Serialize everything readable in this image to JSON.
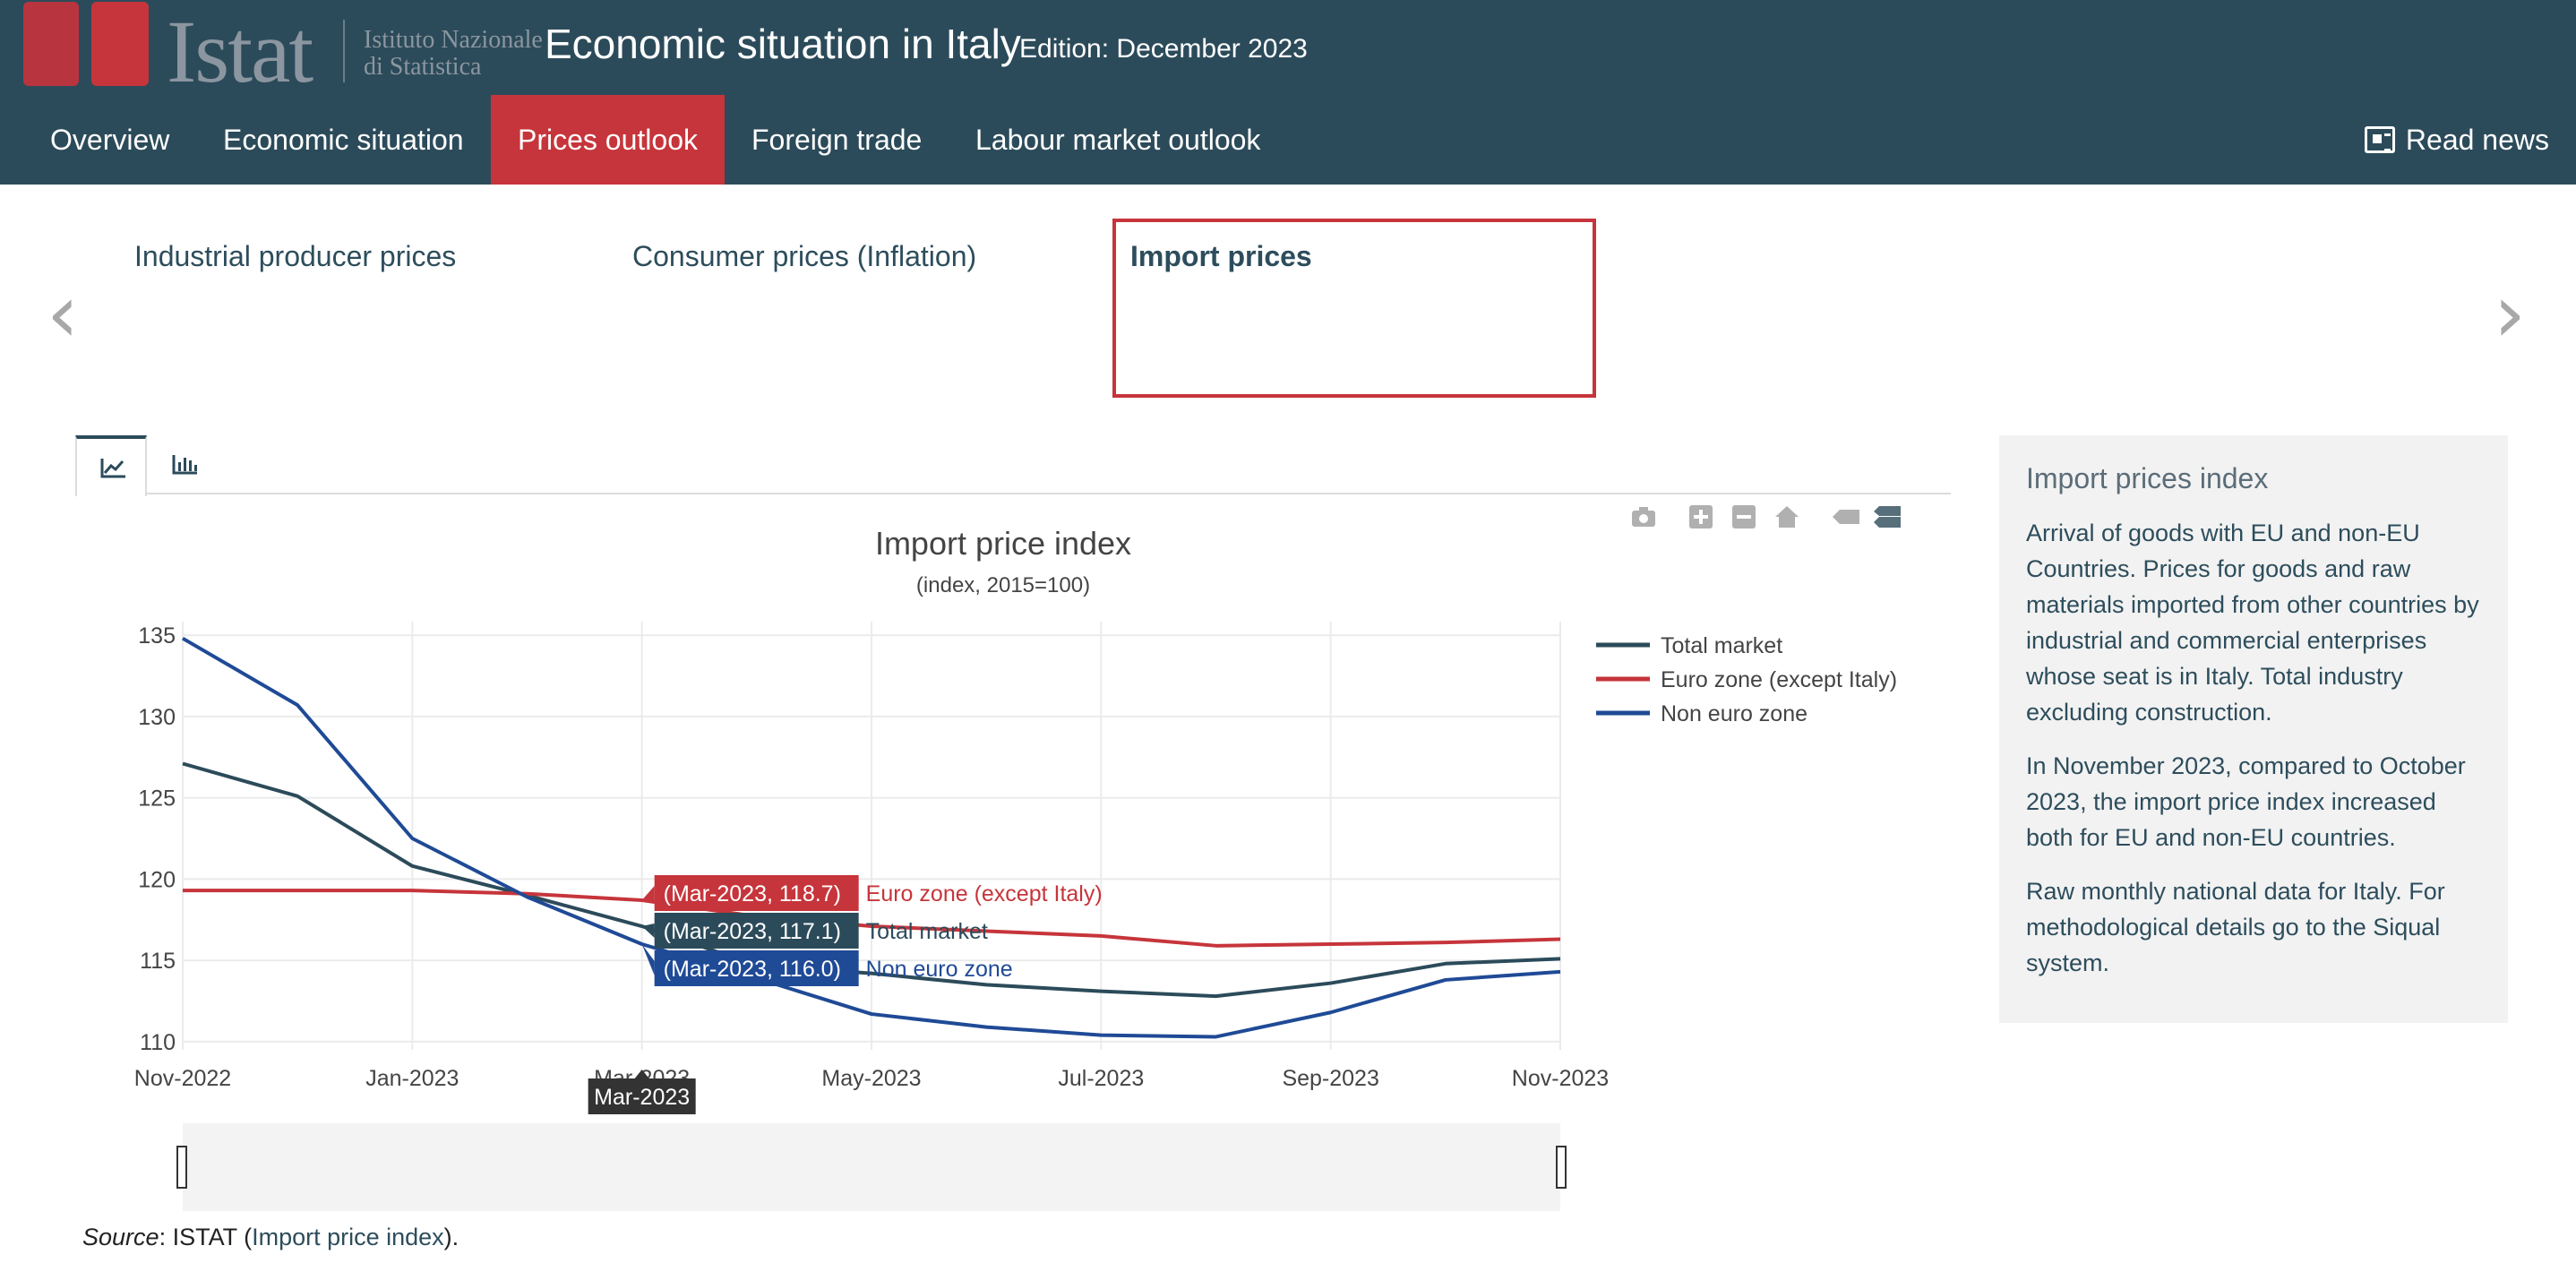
{
  "header": {
    "logo_word": "Istat",
    "logo_sub_line1": "Istituto Nazionale",
    "logo_sub_line2": "di Statistica",
    "title": "Economic situation in Italy",
    "edition": "Edition: December 2023",
    "read_news": "Read news"
  },
  "nav": {
    "items": [
      {
        "label": "Overview"
      },
      {
        "label": "Economic situation"
      },
      {
        "label": "Prices outlook",
        "active": true
      },
      {
        "label": "Foreign trade"
      },
      {
        "label": "Labour market outlook"
      }
    ]
  },
  "carousel": {
    "items": [
      {
        "label": "Industrial producer prices"
      },
      {
        "label": "Consumer prices (Inflation)"
      },
      {
        "label": "Import prices",
        "selected": true
      }
    ],
    "prev_icon": "chevron-left-icon",
    "next_icon": "chevron-right-icon"
  },
  "chart_tabs": {
    "items": [
      {
        "icon": "line-chart-icon",
        "active": true
      },
      {
        "icon": "bar-chart-icon",
        "active": false
      }
    ]
  },
  "modebar": {
    "icons": [
      "camera-icon",
      "zoom-in-icon",
      "zoom-out-icon",
      "home-icon",
      "hover-closest-icon",
      "hover-compare-icon"
    ]
  },
  "chart_data": {
    "type": "line",
    "title": "Import price index",
    "subtitle": "(index, 2015=100)",
    "x": [
      "Nov-2022",
      "Dec-2022",
      "Jan-2023",
      "Feb-2023",
      "Mar-2023",
      "Apr-2023",
      "May-2023",
      "Jun-2023",
      "Jul-2023",
      "Aug-2023",
      "Sep-2023",
      "Oct-2023",
      "Nov-2023"
    ],
    "x_ticks": [
      "Nov-2022",
      "Jan-2023",
      "Mar-2023",
      "May-2023",
      "Jul-2023",
      "Sep-2023",
      "Nov-2023"
    ],
    "y_ticks": [
      110,
      115,
      120,
      125,
      130,
      135
    ],
    "ylim": [
      109.5,
      135.5
    ],
    "grid": true,
    "legend_position": "top-right",
    "series": [
      {
        "name": "Total market",
        "color": "#2c4b5a",
        "values": [
          127.1,
          125.1,
          120.8,
          119.0,
          117.1,
          114.7,
          114.2,
          113.5,
          113.1,
          112.8,
          113.6,
          114.8,
          115.1
        ]
      },
      {
        "name": "Euro zone (except Italy)",
        "color": "#c6353b",
        "values": [
          119.3,
          119.3,
          119.3,
          119.1,
          118.7,
          117.7,
          117.1,
          116.8,
          116.5,
          115.9,
          116.0,
          116.1,
          116.3
        ]
      },
      {
        "name": "Non euro zone",
        "color": "#1f4a96",
        "values": [
          134.8,
          130.7,
          122.5,
          118.9,
          116.0,
          113.9,
          111.7,
          110.9,
          110.4,
          110.3,
          111.8,
          113.8,
          114.3
        ]
      }
    ],
    "hover": {
      "x_label": "Mar-2023",
      "labels": [
        {
          "text": "(Mar-2023, 118.7)",
          "name": "Euro zone (except Italy)",
          "color": "#c6353b"
        },
        {
          "text": "(Mar-2023, 117.1)",
          "name": "Total market",
          "color": "#2c4b5a"
        },
        {
          "text": "(Mar-2023, 116.0)",
          "name": "Non euro zone",
          "color": "#1f4a96"
        }
      ]
    }
  },
  "info": {
    "title": "Import prices index",
    "p1": "Arrival of goods with EU and non-EU Countries. Prices for goods and raw materials imported from other countries by industrial and commercial enterprises whose seat is in Italy. Total industry excluding construction.",
    "p2": "In November 2023, compared to October 2023, the import price index increased both for EU and non-EU countries.",
    "p3": "Raw monthly national data for Italy. For methodological details go to the Siqual system."
  },
  "source": {
    "label": "Source",
    "text": ": ISTAT (",
    "link": "Import price index",
    "end": ")."
  }
}
